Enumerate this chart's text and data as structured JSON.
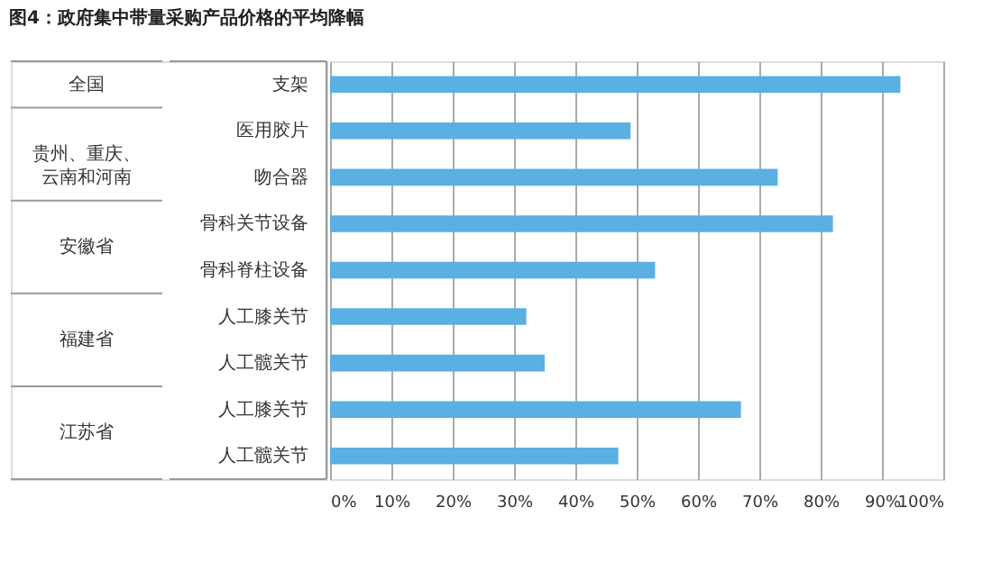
{
  "chart_data": {
    "type": "bar",
    "orientation": "horizontal",
    "title": "图4：政府集中带量采购产品价格的平均降幅",
    "categories": [
      "支架",
      "医用胶片",
      "吻合器",
      "骨科关节设备",
      "骨科脊柱设备",
      "人工膝关节",
      "人工髋关节",
      "人工膝关节",
      "人工髋关节"
    ],
    "values": [
      93,
      49,
      73,
      82,
      53,
      32,
      35,
      67,
      47
    ],
    "color": "#5aafe3",
    "xlim": [
      0,
      100
    ],
    "xticks": [
      {
        "value": 0,
        "label": "0%"
      },
      {
        "value": 10,
        "label": "10%"
      },
      {
        "value": 20,
        "label": "20%"
      },
      {
        "value": 30,
        "label": "30%"
      },
      {
        "value": 40,
        "label": "40%"
      },
      {
        "value": 50,
        "label": "50%"
      },
      {
        "value": 60,
        "label": "60%"
      },
      {
        "value": 70,
        "label": "70%"
      },
      {
        "value": 80,
        "label": "80%"
      },
      {
        "value": 90,
        "label": "90%"
      },
      {
        "value": 100,
        "label": "100%"
      }
    ],
    "grid": "x",
    "annotations": [
      "全国",
      "贵州、重庆、云南和河南",
      "安徽省",
      "福建省",
      "江苏省"
    ]
  }
}
